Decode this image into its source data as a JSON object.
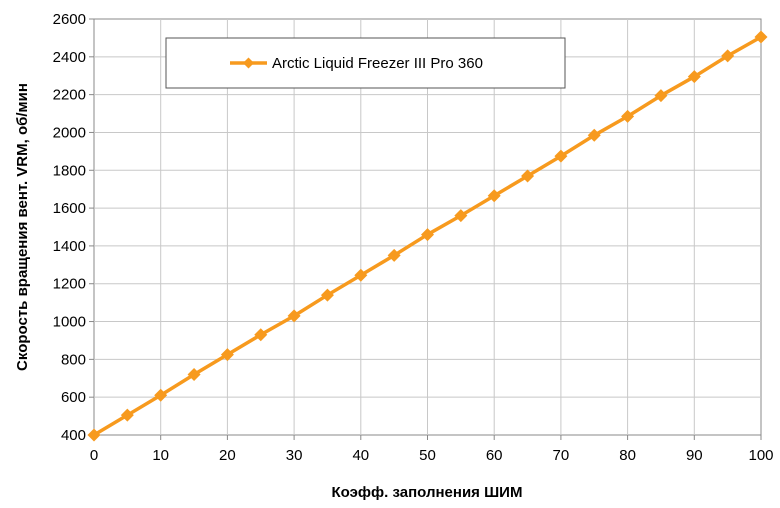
{
  "chart_data": {
    "type": "line",
    "title": "",
    "xlabel": "Коэфф. заполнения ШИМ",
    "ylabel": "Скорость вращения вент. VRM, об/мин",
    "xlim": [
      0,
      100
    ],
    "ylim": [
      400,
      2600
    ],
    "xticks": [
      0,
      10,
      20,
      30,
      40,
      50,
      60,
      70,
      80,
      90,
      100
    ],
    "yticks": [
      400,
      600,
      800,
      1000,
      1200,
      1400,
      1600,
      1800,
      2000,
      2200,
      2400,
      2600
    ],
    "grid": true,
    "legend_position": "top-left",
    "series": [
      {
        "name": "Arctic Liquid Freezer III Pro 360",
        "color": "#f79a1e",
        "marker": "diamond",
        "x": [
          0,
          5,
          10,
          15,
          20,
          25,
          30,
          35,
          40,
          45,
          50,
          55,
          60,
          65,
          70,
          75,
          80,
          85,
          90,
          95,
          100
        ],
        "y": [
          400,
          505,
          610,
          720,
          825,
          930,
          1030,
          1140,
          1245,
          1350,
          1460,
          1560,
          1665,
          1770,
          1875,
          1985,
          2085,
          2195,
          2295,
          2405,
          2505
        ]
      }
    ]
  }
}
